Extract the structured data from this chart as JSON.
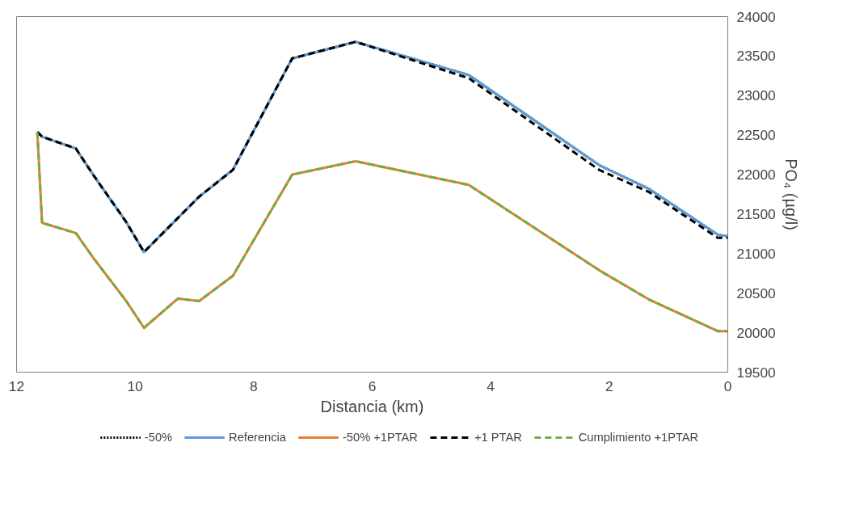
{
  "chart_data": {
    "type": "line",
    "xlabel": "Distancia (km)",
    "ylabel": "PO₄ (µg/l)",
    "xlim": [
      12,
      0
    ],
    "xticks": [
      12,
      10,
      8,
      6,
      4,
      2,
      0
    ],
    "ylim": [
      19500,
      24000
    ],
    "yticks": [
      19500,
      20000,
      20500,
      21000,
      21500,
      22000,
      22500,
      23000,
      23500,
      24000
    ],
    "grid": false,
    "legend": "bottom",
    "marker": "none",
    "x": [
      11.65,
      11.57,
      11.0,
      10.7,
      10.15,
      9.85,
      9.28,
      8.92,
      8.35,
      7.35,
      6.28,
      4.37,
      2.17,
      1.33,
      0.17,
      0
    ],
    "series": [
      {
        "name": "-50%",
        "color": "#000000",
        "line_style": "dotted",
        "values": [
          22540,
          22480,
          22330,
          21990,
          21400,
          21020,
          21450,
          21720,
          22060,
          23470,
          23680,
          23260,
          22120,
          21820,
          21240,
          21220
        ]
      },
      {
        "name": "Referencia",
        "color": "#5b9bd5",
        "line_style": "solid",
        "values": [
          22540,
          22480,
          22330,
          21990,
          21400,
          21020,
          21450,
          21720,
          22060,
          23470,
          23680,
          23260,
          22120,
          21820,
          21240,
          21220
        ]
      },
      {
        "name": "-50% +1PTAR",
        "color": "#ed7d31",
        "line_style": "solid",
        "values": [
          22540,
          21390,
          21260,
          20940,
          20400,
          20060,
          20430,
          20400,
          20720,
          22000,
          22170,
          21870,
          20790,
          20420,
          20020,
          20020
        ]
      },
      {
        "name": "+1 PTAR",
        "color": "#000000",
        "line_style": "dashed",
        "values": [
          22540,
          22480,
          22330,
          21990,
          21400,
          21020,
          21450,
          21720,
          22060,
          23470,
          23680,
          23220,
          22060,
          21780,
          21200,
          21200
        ]
      },
      {
        "name": "Cumplimiento +1PTAR",
        "color": "#70ad47",
        "line_style": "dashed",
        "values": [
          22540,
          21390,
          21260,
          20940,
          20400,
          20060,
          20430,
          20400,
          20720,
          22000,
          22170,
          21870,
          20790,
          20420,
          20020,
          20020
        ]
      }
    ]
  }
}
